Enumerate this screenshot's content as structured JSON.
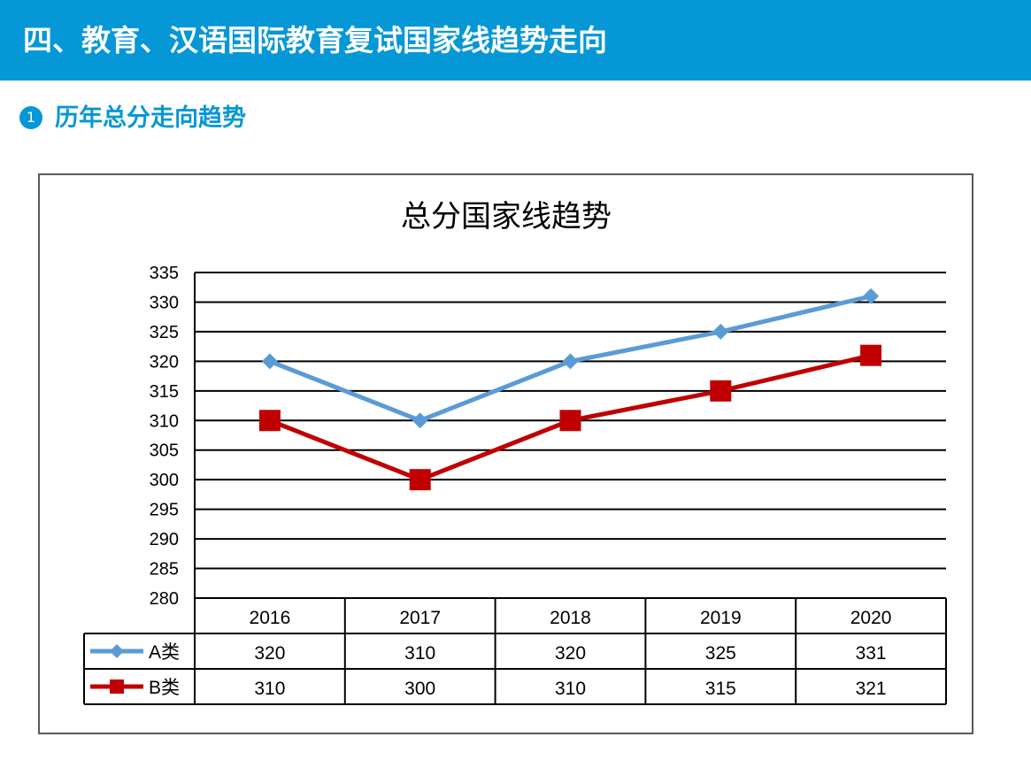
{
  "header": {
    "title": "四、教育、汉语国际教育复试国家线趋势走向"
  },
  "section": {
    "number": "1",
    "title": "历年总分走向趋势"
  },
  "chart_data": {
    "type": "line",
    "title": "总分国家线趋势",
    "categories": [
      "2016",
      "2017",
      "2018",
      "2019",
      "2020"
    ],
    "ylim": [
      280,
      335
    ],
    "yticks": [
      335,
      330,
      325,
      320,
      315,
      310,
      305,
      300,
      295,
      290,
      285,
      280
    ],
    "grid": true,
    "legend": "data-table",
    "series": [
      {
        "name": "A类",
        "values": [
          320,
          310,
          320,
          325,
          331
        ],
        "color": "#5b9bd5",
        "marker": "diamond"
      },
      {
        "name": "B类",
        "values": [
          310,
          300,
          310,
          315,
          321
        ],
        "color": "#c00000",
        "marker": "square"
      }
    ]
  }
}
